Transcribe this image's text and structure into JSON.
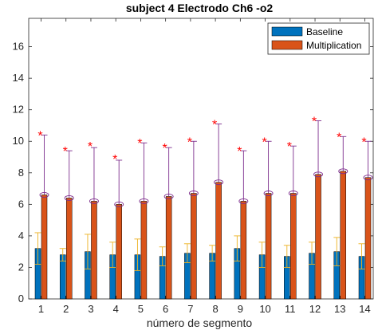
{
  "chart_data": {
    "type": "bar",
    "title": "subject 4 Electrodo Ch6 -o2",
    "xlabel": "número de segmento",
    "ylabel": "",
    "categories": [
      "1",
      "2",
      "3",
      "4",
      "5",
      "6",
      "7",
      "8",
      "9",
      "10",
      "11",
      "12",
      "13",
      "14"
    ],
    "ylim": [
      0,
      17.8
    ],
    "yticks": [
      0,
      2,
      4,
      6,
      8,
      10,
      12,
      14,
      16
    ],
    "grid": false,
    "legend_position": "top-right",
    "series": [
      {
        "name": "Baseline",
        "color": "#0072BD",
        "values": [
          3.2,
          2.8,
          3.0,
          2.8,
          2.8,
          2.7,
          2.9,
          2.9,
          3.2,
          2.8,
          2.7,
          2.9,
          3.0,
          2.7
        ],
        "error_upper": [
          4.2,
          3.2,
          4.1,
          3.6,
          3.8,
          3.3,
          3.5,
          3.4,
          4.0,
          3.6,
          3.4,
          3.6,
          3.9,
          3.5
        ],
        "error_lower": [
          2.2,
          2.4,
          1.9,
          2.0,
          1.8,
          2.1,
          2.3,
          2.4,
          2.4,
          2.0,
          2.0,
          2.2,
          2.1,
          1.9
        ],
        "error_color": "#EDB120"
      },
      {
        "name": "Multiplication",
        "color": "#D95319",
        "values": [
          6.6,
          6.4,
          6.2,
          6.0,
          6.2,
          6.5,
          6.7,
          7.4,
          6.2,
          6.7,
          6.7,
          7.9,
          8.1,
          7.7
        ],
        "error_upper": [
          10.4,
          9.4,
          9.6,
          8.8,
          9.9,
          9.6,
          10.0,
          11.1,
          9.4,
          10.0,
          9.7,
          11.3,
          10.3,
          10.0
        ],
        "error_color": "#7E2F8E",
        "markers": [
          10.5,
          9.5,
          9.8,
          9.0,
          10.0,
          9.7,
          10.1,
          11.2,
          9.5,
          10.1,
          9.8,
          11.4,
          10.4,
          10.1
        ],
        "marker_color": "#FF0000",
        "marker_symbol": "*"
      }
    ]
  }
}
